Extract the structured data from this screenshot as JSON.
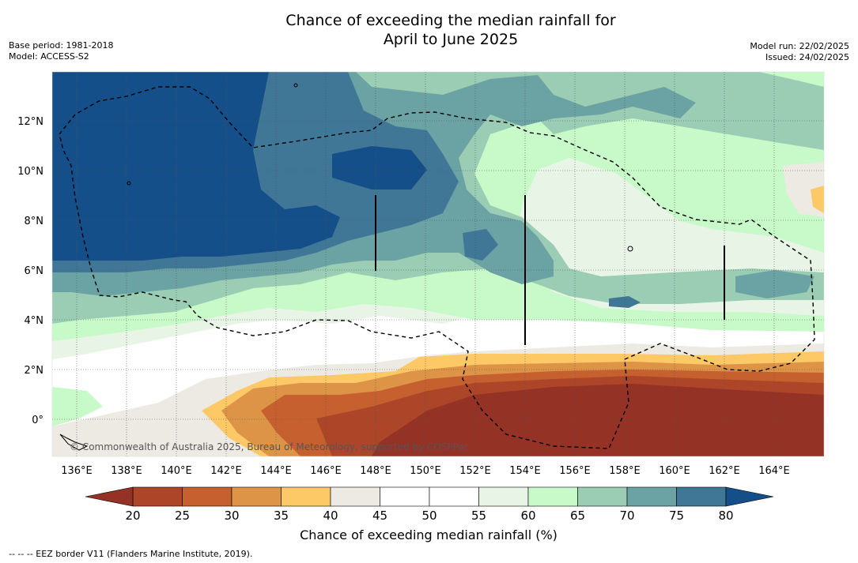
{
  "title_line1": "Chance of exceeding the median rainfall for",
  "title_line2": "April to June 2025",
  "base_period": "Base period: 1981-2018",
  "model": "Model: ACCESS-S2",
  "model_run": "Model run: 22/02/2025",
  "issued": "Issued: 24/02/2025",
  "copyright": "© Commonwealth of Australia 2025, Bureau of Meteorology, supported by COSPPac",
  "lat_ticks": [
    "12°N",
    "10°N",
    "8°N",
    "6°N",
    "4°N",
    "2°N",
    "0°"
  ],
  "lon_ticks": [
    "136°E",
    "138°E",
    "140°E",
    "142°E",
    "144°E",
    "146°E",
    "148°E",
    "150°E",
    "152°E",
    "154°E",
    "156°E",
    "158°E",
    "160°E",
    "162°E",
    "164°E"
  ],
  "colorbar": {
    "title": "Chance of exceeding median rainfall (%)",
    "labels": [
      "20",
      "25",
      "30",
      "35",
      "40",
      "45",
      "50",
      "55",
      "60",
      "65",
      "70",
      "75",
      "80"
    ],
    "colors": [
      "#ad4629",
      "#c6612f",
      "#de9447",
      "#fdc966",
      "#ede9e3",
      "#ffffff",
      "#ffffff",
      "#e8f5e6",
      "#c8fac9",
      "#9acdb3",
      "#6ba2a4",
      "#407796"
    ],
    "under_color": "#943226",
    "over_color": "#144f8a"
  },
  "footnote": "-- -- -- EEZ border V11 (Flanders Marine Institute, 2019)."
}
